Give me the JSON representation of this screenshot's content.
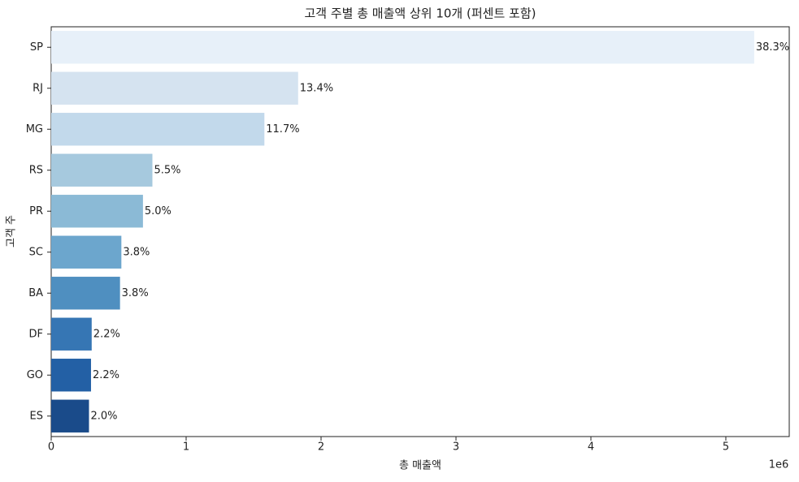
{
  "chart_data": {
    "type": "barh",
    "title": "고객 주별 총 매출액 상위 10개 (퍼센트 포함)",
    "xlabel": "총 매출액",
    "ylabel": "고객 주",
    "x_offset_label": "1e6",
    "categories": [
      "SP",
      "RJ",
      "MG",
      "RS",
      "PR",
      "SC",
      "BA",
      "DF",
      "GO",
      "ES"
    ],
    "values": [
      5.21,
      1.83,
      1.58,
      0.75,
      0.68,
      0.52,
      0.51,
      0.3,
      0.295,
      0.28
    ],
    "percent_labels": [
      "38.3%",
      "13.4%",
      "11.7%",
      "5.5%",
      "5.0%",
      "3.8%",
      "3.8%",
      "2.2%",
      "2.2%",
      "2.0%"
    ],
    "colors": [
      "#e7f0f9",
      "#d5e3f0",
      "#c2d9eb",
      "#a6c9de",
      "#8bbad6",
      "#6ca6cd",
      "#4f8fc0",
      "#3676b4",
      "#2360a5",
      "#1a4b8a"
    ],
    "xlim": [
      0,
      5.47
    ],
    "xticks": [
      0,
      1,
      2,
      3,
      4,
      5
    ]
  }
}
